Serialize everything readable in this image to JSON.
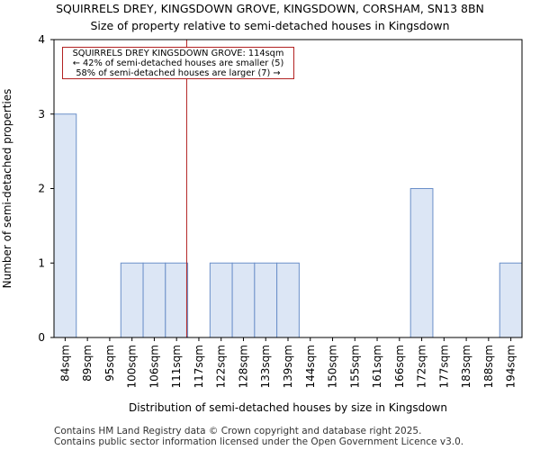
{
  "chart_data": {
    "type": "bar",
    "title": "SQUIRRELS DREY, KINGSDOWN GROVE, KINGSDOWN, CORSHAM, SN13 8BN",
    "subtitle": "Size of property relative to semi-detached houses in Kingsdown",
    "xlabel": "Distribution of semi-detached houses by size in Kingsdown",
    "ylabel": "Number of semi-detached properties",
    "categories": [
      "84sqm",
      "89sqm",
      "95sqm",
      "100sqm",
      "106sqm",
      "111sqm",
      "117sqm",
      "122sqm",
      "128sqm",
      "133sqm",
      "139sqm",
      "144sqm",
      "150sqm",
      "155sqm",
      "161sqm",
      "166sqm",
      "172sqm",
      "177sqm",
      "183sqm",
      "188sqm",
      "194sqm"
    ],
    "values": [
      3,
      0,
      0,
      1,
      1,
      1,
      0,
      1,
      1,
      1,
      1,
      0,
      0,
      0,
      0,
      0,
      2,
      0,
      0,
      0,
      1
    ],
    "ylim": [
      0,
      4
    ],
    "yticks": [
      0,
      1,
      2,
      3,
      4
    ],
    "property_size_sqm": 114,
    "annotation": {
      "line1": "SQUIRRELS DREY KINGSDOWN GROVE: 114sqm",
      "line2": "← 42% of semi-detached houses are smaller (5)",
      "line3": "58% of semi-detached houses are larger (7) →"
    },
    "colors": {
      "bar_fill": "#dce6f5",
      "bar_edge": "#6b8fc9",
      "marker": "#b22222"
    }
  },
  "footer": {
    "line1": "Contains HM Land Registry data © Crown copyright and database right 2025.",
    "line2": "Contains public sector information licensed under the Open Government Licence v3.0."
  }
}
